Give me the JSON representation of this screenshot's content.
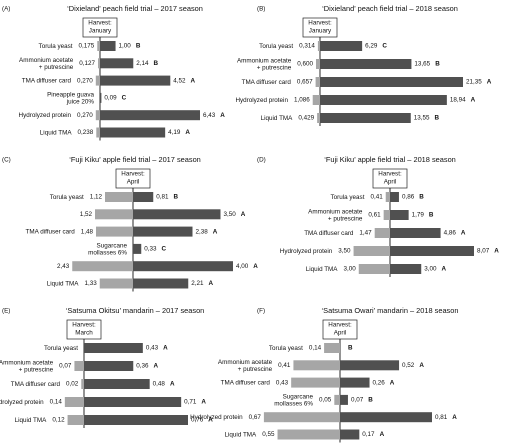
{
  "chart_data": [
    {
      "type": "bar",
      "panel_label": "(A)",
      "title": "‘Dixieland’ peach field trial – 2017 season",
      "annotation": [
        "Harvest:",
        "January"
      ],
      "categories": [
        [
          "Torula yeast"
        ],
        [
          "Ammonium acetate",
          "+ putrescine"
        ],
        [
          "TMA diffuser card"
        ],
        [
          "Pineapple guava",
          "juice 20%"
        ],
        [
          "Hydrolyzed protein"
        ],
        [
          "Liquid TMA"
        ]
      ],
      "series": [
        {
          "color": "#a6a6a6",
          "values": [
            0.175,
            0.127,
            0.27,
            null,
            0.27,
            0.238
          ],
          "value_labels": [
            "0,175",
            "0,127",
            "0,270",
            null,
            "0,270",
            "0,238"
          ]
        },
        {
          "color": "#505050",
          "values": [
            1,
            2.14,
            4.52,
            0.09,
            6.43,
            4.19
          ],
          "value_labels": [
            "1,00",
            "2,14",
            "4,52",
            "0,09",
            "6,43",
            "4,19"
          ]
        }
      ],
      "letters": [
        "B",
        "B",
        "A",
        "C",
        "A",
        "A"
      ]
    },
    {
      "type": "bar",
      "panel_label": "(B)",
      "title": "‘Dixieland’ peach field trial – 2018 season",
      "annotation": [
        "Harvest:",
        "January"
      ],
      "categories": [
        [
          "Torula yeast"
        ],
        [
          "Ammonium acetate",
          "+ putrescine"
        ],
        [
          "TMA diffuser card"
        ],
        [
          "Hydrolyzed protein"
        ],
        [
          "Liquid TMA"
        ]
      ],
      "series": [
        {
          "color": "#a6a6a6",
          "values": [
            0.314,
            0.6,
            0.657,
            1.086,
            0.429
          ],
          "value_labels": [
            "0,314",
            "0,600",
            "0,657",
            "1,086",
            "0,429"
          ]
        },
        {
          "color": "#505050",
          "values": [
            6.29,
            13.65,
            21.35,
            18.94,
            13.55
          ],
          "value_labels": [
            "6,29",
            "13,65",
            "21,35",
            "18,94",
            "13,55"
          ]
        }
      ],
      "letters": [
        "C",
        "B",
        "A",
        "A",
        "B"
      ]
    },
    {
      "type": "bar",
      "panel_label": "(C)",
      "title": "‘Fuji Kiku’ apple field trial – 2017 season",
      "annotation": [
        "Harvest:",
        "April"
      ],
      "categories": [
        [
          "Torula yeast"
        ],
        null,
        [
          "TMA diffuser card"
        ],
        [
          "Sugarcane",
          "mollasses 6%"
        ],
        null,
        [
          "Liquid TMA"
        ]
      ],
      "series": [
        {
          "color": "#a6a6a6",
          "values": [
            1.12,
            1.52,
            1.48,
            null,
            2.43,
            1.33
          ],
          "value_labels": [
            "1,12",
            "1,52",
            "1,48",
            null,
            "2,43",
            "1,33"
          ]
        },
        {
          "color": "#505050",
          "values": [
            0.81,
            3.5,
            2.38,
            0.33,
            4,
            2.21
          ],
          "value_labels": [
            "0,81",
            "3,50",
            "2,38",
            "0,33",
            "4,00",
            "2,21"
          ]
        }
      ],
      "letters": [
        "B",
        "A",
        "A",
        "C",
        "A",
        "A"
      ]
    },
    {
      "type": "bar",
      "panel_label": "(D)",
      "title": "‘Fuji Kiku’ apple field trial – 2018 season",
      "annotation": [
        "Harvest:",
        "April"
      ],
      "categories": [
        [
          "Torula yeast"
        ],
        [
          "Ammonium acetate",
          "+ putrescine"
        ],
        [
          "TMA diffuser card"
        ],
        [
          "Hydrolyzed protein"
        ],
        [
          "Liquid TMA"
        ]
      ],
      "series": [
        {
          "color": "#a6a6a6",
          "values": [
            0.41,
            0.61,
            1.47,
            3.5,
            3
          ],
          "value_labels": [
            "0,41",
            "0,61",
            "1,47",
            "3,50",
            "3,00"
          ]
        },
        {
          "color": "#505050",
          "values": [
            0.86,
            1.79,
            4.86,
            8.07,
            3
          ],
          "value_labels": [
            "0,86",
            "1,79",
            "4,86",
            "8,07",
            "3,00"
          ]
        }
      ],
      "letters": [
        "B",
        "B",
        "A",
        "A",
        "A"
      ]
    },
    {
      "type": "bar",
      "panel_label": "(E)",
      "title": "‘Satsuma Okitsu’ mandarin – 2017 season",
      "annotation": [
        "Harvest:",
        "March"
      ],
      "categories": [
        [
          "Torula yeast"
        ],
        [
          "Ammonium acetate",
          "+ putrescine"
        ],
        [
          "TMA diffuser card"
        ],
        [
          "Hydrolyzed protein"
        ],
        [
          "Liquid TMA"
        ]
      ],
      "series": [
        {
          "color": "#a6a6a6",
          "values": [
            null,
            0.07,
            0.02,
            0.14,
            0.12
          ],
          "value_labels": [
            null,
            "0,07",
            "0,02",
            "0,14",
            "0,12"
          ]
        },
        {
          "color": "#505050",
          "values": [
            0.43,
            0.36,
            0.48,
            0.71,
            0.76
          ],
          "value_labels": [
            "0,43",
            "0,36",
            "0,48",
            "0,71",
            "0,76"
          ]
        }
      ],
      "letters": [
        "A",
        "A",
        "A",
        "A",
        "A"
      ]
    },
    {
      "type": "bar",
      "panel_label": "(F)",
      "title": "‘Satsuma Owari’ mandarin – 2018 season",
      "annotation": [
        "Harvest:",
        "April"
      ],
      "categories": [
        [
          "Torula yeast"
        ],
        [
          "Ammonium acetate",
          "+ putrescine"
        ],
        [
          "TMA diffuser card"
        ],
        [
          "Sugarcane",
          "mollasses 6%"
        ],
        [
          "Hydrolyzed protein"
        ],
        [
          "Liquid TMA"
        ]
      ],
      "series": [
        {
          "color": "#a6a6a6",
          "values": [
            0.14,
            0.41,
            0.43,
            0.05,
            0.67,
            0.55
          ],
          "value_labels": [
            "0,14",
            "0,41",
            "0,43",
            "0,05",
            "0,67",
            "0,55"
          ]
        },
        {
          "color": "#505050",
          "values": [
            null,
            0.52,
            0.26,
            0.07,
            0.81,
            0.17
          ],
          "value_labels": [
            null,
            "0,52",
            "0,26",
            "0,07",
            "0,81",
            "0,17"
          ]
        }
      ],
      "letters": [
        "B",
        "A",
        "A",
        "B",
        "A",
        "A"
      ]
    }
  ]
}
